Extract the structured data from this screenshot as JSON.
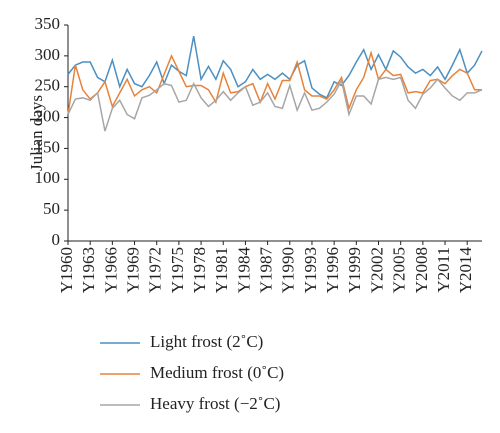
{
  "chart_data": {
    "type": "line",
    "y_label": "Julian days",
    "categories": [
      "Y1960",
      null,
      null,
      "Y1963",
      null,
      null,
      "Y1966",
      null,
      null,
      "Y1969",
      null,
      null,
      "Y1972",
      null,
      null,
      "Y1975",
      null,
      null,
      "Y1978",
      null,
      null,
      "Y1981",
      null,
      null,
      "Y1984",
      null,
      null,
      "Y1987",
      null,
      null,
      "Y1990",
      null,
      null,
      "Y1993",
      null,
      null,
      "Y1996",
      null,
      null,
      "Y1999",
      null,
      null,
      "Y2002",
      null,
      null,
      "Y2005",
      null,
      null,
      "Y2008",
      null,
      null,
      "Y2011",
      null,
      null,
      "Y2014",
      null,
      null
    ],
    "series": [
      {
        "name": "Light frost (2˚C)",
        "color": "#4a90c2",
        "values": [
          270,
          285,
          290,
          290,
          265,
          258,
          293,
          250,
          278,
          255,
          250,
          268,
          290,
          255,
          285,
          275,
          268,
          332,
          262,
          283,
          262,
          292,
          278,
          250,
          258,
          278,
          262,
          270,
          262,
          272,
          262,
          285,
          292,
          248,
          238,
          232,
          258,
          252,
          268,
          290,
          310,
          278,
          302,
          278,
          308,
          298,
          282,
          272,
          278,
          268,
          282,
          262,
          285,
          310,
          272,
          285,
          308
        ]
      },
      {
        "name": "Medium frost (0˚C)",
        "color": "#e8823a",
        "values": [
          205,
          285,
          245,
          230,
          240,
          258,
          218,
          240,
          262,
          235,
          245,
          250,
          240,
          270,
          300,
          275,
          250,
          252,
          252,
          245,
          225,
          272,
          240,
          242,
          250,
          255,
          225,
          255,
          230,
          260,
          260,
          290,
          245,
          235,
          235,
          230,
          245,
          265,
          215,
          245,
          265,
          305,
          262,
          278,
          268,
          270,
          240,
          242,
          240,
          260,
          262,
          255,
          268,
          278,
          272,
          245,
          245
        ]
      },
      {
        "name": "Heavy frost (−2˚C)",
        "color": "#a6a6a6",
        "values": [
          205,
          230,
          232,
          228,
          240,
          178,
          215,
          228,
          205,
          198,
          232,
          236,
          245,
          255,
          252,
          225,
          228,
          255,
          232,
          218,
          228,
          242,
          228,
          240,
          250,
          220,
          225,
          240,
          218,
          215,
          252,
          212,
          240,
          212,
          215,
          225,
          238,
          260,
          205,
          235,
          235,
          222,
          262,
          265,
          262,
          265,
          228,
          215,
          238,
          248,
          262,
          248,
          235,
          228,
          240,
          240,
          245
        ]
      }
    ],
    "ylim": [
      0,
      350
    ],
    "yticks": [
      0,
      50,
      100,
      150,
      200,
      250,
      300,
      350
    ]
  }
}
